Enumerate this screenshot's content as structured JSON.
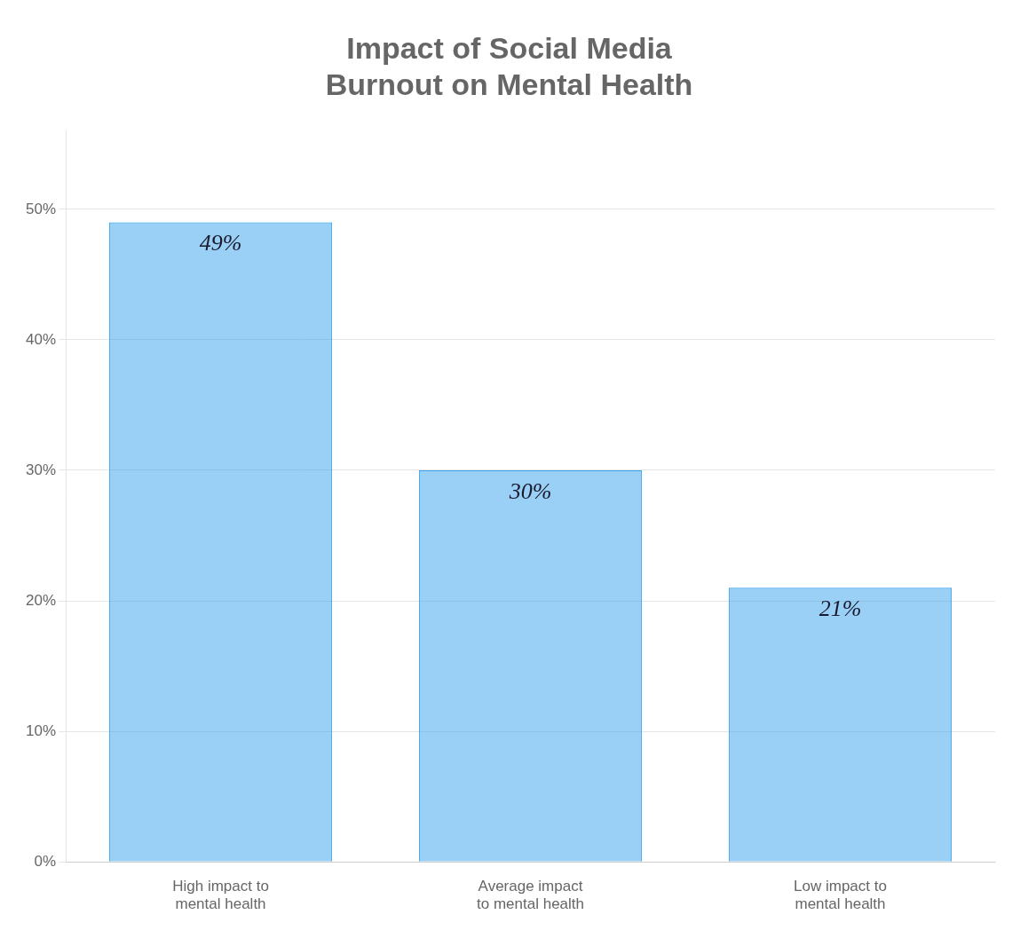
{
  "chart_data": {
    "type": "bar",
    "title": "Impact of Social Media\nBurnout on Mental Health",
    "categories": [
      "High impact to\nmental health",
      "Average impact\nto mental health",
      "Low impact to\nmental health"
    ],
    "values": [
      49,
      30,
      21
    ],
    "value_labels": [
      "49%",
      "30%",
      "21%"
    ],
    "data_labels": true,
    "ylim": [
      0,
      56
    ],
    "yticks": [
      {
        "value": 0,
        "label": "0%"
      },
      {
        "value": 10,
        "label": "10%"
      },
      {
        "value": 20,
        "label": "20%"
      },
      {
        "value": 30,
        "label": "30%"
      },
      {
        "value": 40,
        "label": "40%"
      },
      {
        "value": 50,
        "label": "50%"
      }
    ],
    "grid": true
  }
}
